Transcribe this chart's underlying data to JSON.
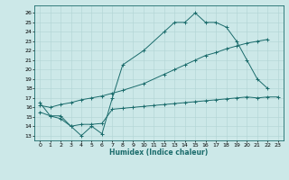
{
  "xlabel": "Humidex (Indice chaleur)",
  "bg_color": "#cce8e8",
  "grid_color": "#b0d4d4",
  "line_color": "#1a6b6b",
  "xlim": [
    -0.5,
    23.5
  ],
  "ylim": [
    12.5,
    26.8
  ],
  "xticks": [
    0,
    1,
    2,
    3,
    4,
    5,
    6,
    7,
    8,
    9,
    10,
    11,
    12,
    13,
    14,
    15,
    16,
    17,
    18,
    19,
    20,
    21,
    22,
    23
  ],
  "yticks": [
    13,
    14,
    15,
    16,
    17,
    18,
    19,
    20,
    21,
    22,
    23,
    24,
    25,
    26
  ],
  "curve1_x": [
    0,
    1,
    2,
    3,
    4,
    5,
    6,
    7,
    8,
    10,
    12,
    13,
    14,
    15,
    16,
    17,
    18,
    19,
    20,
    21,
    22
  ],
  "curve1_y": [
    16.5,
    15.1,
    15.1,
    14.0,
    13.0,
    14.0,
    13.2,
    17.0,
    20.5,
    22.0,
    24.0,
    25.0,
    25.0,
    26.0,
    25.0,
    25.0,
    24.5,
    23.0,
    21.0,
    19.0,
    18.0
  ],
  "curve2_x": [
    0,
    1,
    2,
    3,
    4,
    5,
    6,
    7,
    8,
    10,
    12,
    13,
    14,
    15,
    16,
    17,
    18,
    19,
    20,
    21,
    22
  ],
  "curve2_y": [
    16.2,
    16.0,
    16.3,
    16.5,
    16.8,
    17.0,
    17.2,
    17.5,
    17.8,
    18.5,
    19.5,
    20.0,
    20.5,
    21.0,
    21.5,
    21.8,
    22.2,
    22.5,
    22.8,
    23.0,
    23.2
  ],
  "curve3_x": [
    0,
    1,
    2,
    3,
    4,
    5,
    6,
    7,
    8,
    9,
    10,
    11,
    12,
    13,
    14,
    15,
    16,
    17,
    18,
    19,
    20,
    21,
    22,
    23
  ],
  "curve3_y": [
    15.5,
    15.1,
    14.8,
    14.0,
    14.2,
    14.2,
    14.3,
    15.8,
    15.9,
    16.0,
    16.1,
    16.2,
    16.3,
    16.4,
    16.5,
    16.6,
    16.7,
    16.8,
    16.9,
    17.0,
    17.1,
    17.0,
    17.1,
    17.1
  ]
}
